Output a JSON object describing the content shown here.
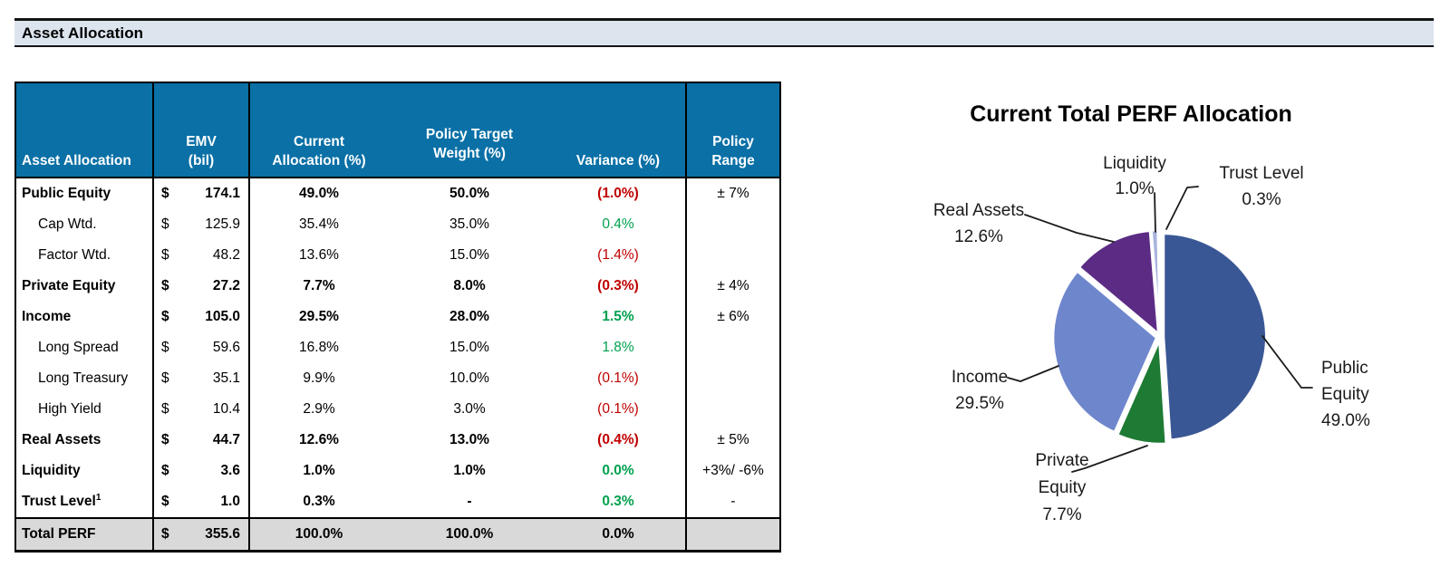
{
  "header": {
    "title": "Asset Allocation"
  },
  "colors": {
    "header_blue": "#0A70A6",
    "banner_fill": "#DCE4EE",
    "negative_red": "#C00000",
    "positive_green": "#00A14F",
    "total_gray": "#D9D9D9"
  },
  "table": {
    "columns": [
      {
        "lines": [
          "Asset Allocation"
        ]
      },
      {
        "lines": [
          "EMV",
          "(bil)"
        ]
      },
      {
        "lines": [
          "Current",
          "Allocation (%)"
        ]
      },
      {
        "lines": [
          "Policy Target",
          "Weight (%)"
        ]
      },
      {
        "lines": [
          "Variance (%)"
        ]
      },
      {
        "lines": [
          "Policy",
          "Range"
        ]
      }
    ],
    "currency_symbol": "$",
    "rows": [
      {
        "label": "Public Equity",
        "bold": true,
        "indent": false,
        "emv": "174.1",
        "current": "49.0%",
        "target": "50.0%",
        "variance": "(1.0%)",
        "variance_color": "red",
        "range": "± 7%"
      },
      {
        "label": "Cap Wtd.",
        "bold": false,
        "indent": true,
        "emv": "125.9",
        "current": "35.4%",
        "target": "35.0%",
        "variance": "0.4%",
        "variance_color": "green",
        "range": ""
      },
      {
        "label": "Factor Wtd.",
        "bold": false,
        "indent": true,
        "emv": "48.2",
        "current": "13.6%",
        "target": "15.0%",
        "variance": "(1.4%)",
        "variance_color": "red",
        "range": ""
      },
      {
        "label": "Private Equity",
        "bold": true,
        "indent": false,
        "emv": "27.2",
        "current": "7.7%",
        "target": "8.0%",
        "variance": "(0.3%)",
        "variance_color": "red",
        "range": "± 4%"
      },
      {
        "label": "Income",
        "bold": true,
        "indent": false,
        "emv": "105.0",
        "current": "29.5%",
        "target": "28.0%",
        "variance": "1.5%",
        "variance_color": "green",
        "range": "± 6%"
      },
      {
        "label": "Long Spread",
        "bold": false,
        "indent": true,
        "emv": "59.6",
        "current": "16.8%",
        "target": "15.0%",
        "variance": "1.8%",
        "variance_color": "green",
        "range": ""
      },
      {
        "label": "Long Treasury",
        "bold": false,
        "indent": true,
        "emv": "35.1",
        "current": "9.9%",
        "target": "10.0%",
        "variance": "(0.1%)",
        "variance_color": "red",
        "range": ""
      },
      {
        "label": "High Yield",
        "bold": false,
        "indent": true,
        "emv": "10.4",
        "current": "2.9%",
        "target": "3.0%",
        "variance": "(0.1%)",
        "variance_color": "red",
        "range": ""
      },
      {
        "label": "Real Assets",
        "bold": true,
        "indent": false,
        "emv": "44.7",
        "current": "12.6%",
        "target": "13.0%",
        "variance": "(0.4%)",
        "variance_color": "red",
        "range": "± 5%"
      },
      {
        "label": "Liquidity",
        "bold": true,
        "indent": false,
        "emv": "3.6",
        "current": "1.0%",
        "target": "1.0%",
        "variance": "0.0%",
        "variance_color": "green",
        "range": "+3%/ -6%"
      },
      {
        "label": "Trust Level",
        "sup": "1",
        "bold": true,
        "indent": false,
        "emv": "1.0",
        "current": "0.3%",
        "target": "-",
        "variance": "0.3%",
        "variance_color": "green",
        "range": "-"
      }
    ],
    "total": {
      "label": "Total PERF",
      "emv": "355.6",
      "current": "100.0%",
      "target": "100.0%",
      "variance": "0.0%",
      "range": ""
    }
  },
  "chart_data": {
    "type": "pie",
    "title": "Current Total PERF Allocation",
    "direction": "clockwise",
    "start_angle_deg": 0,
    "labels_outside": true,
    "series": [
      {
        "name": "Public Equity",
        "value": 49.0,
        "display": "49.0%",
        "color": "#3A5795"
      },
      {
        "name": "Private Equity",
        "value": 7.7,
        "display": "7.7%",
        "color": "#1E7B34"
      },
      {
        "name": "Income",
        "value": 29.5,
        "display": "29.5%",
        "color": "#6E86CC"
      },
      {
        "name": "Real Assets",
        "value": 12.6,
        "display": "12.6%",
        "color": "#5C2C85"
      },
      {
        "name": "Liquidity",
        "value": 1.0,
        "display": "1.0%",
        "color": "#A9B3DD"
      },
      {
        "name": "Trust Level",
        "value": 0.3,
        "display": "0.3%",
        "color": "#E58F3C"
      }
    ]
  }
}
